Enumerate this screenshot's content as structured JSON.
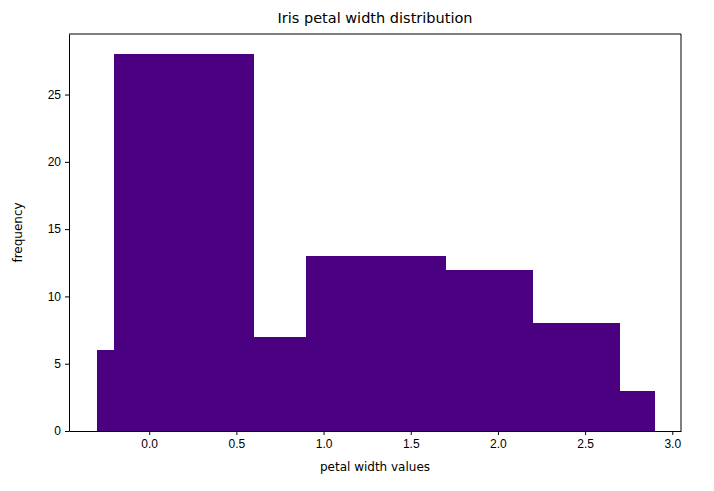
{
  "chart_data": {
    "type": "histogram",
    "title": "Iris petal width distribution",
    "x_label": "petal width values",
    "y_label": "frequency",
    "bins": [
      -0.3,
      -0.2,
      0.6,
      0.9,
      1.7,
      2.2,
      2.7,
      2.9
    ],
    "values": [
      6,
      28,
      7,
      13,
      12,
      8,
      3
    ],
    "color": "#4b0082",
    "xlim": [
      -0.46,
      3.05
    ],
    "xticks": [
      {
        "value": 0,
        "label": "0.0"
      },
      0.5,
      {
        "value": 1,
        "label": "1.0"
      },
      1.5,
      {
        "value": 2,
        "label": "2.0"
      },
      2.5,
      {
        "value": 3,
        "label": "3.0"
      }
    ],
    "ylim": [
      0,
      29.5
    ],
    "yticks": [
      0,
      5,
      10,
      15,
      20,
      25
    ],
    "grid": false
  }
}
